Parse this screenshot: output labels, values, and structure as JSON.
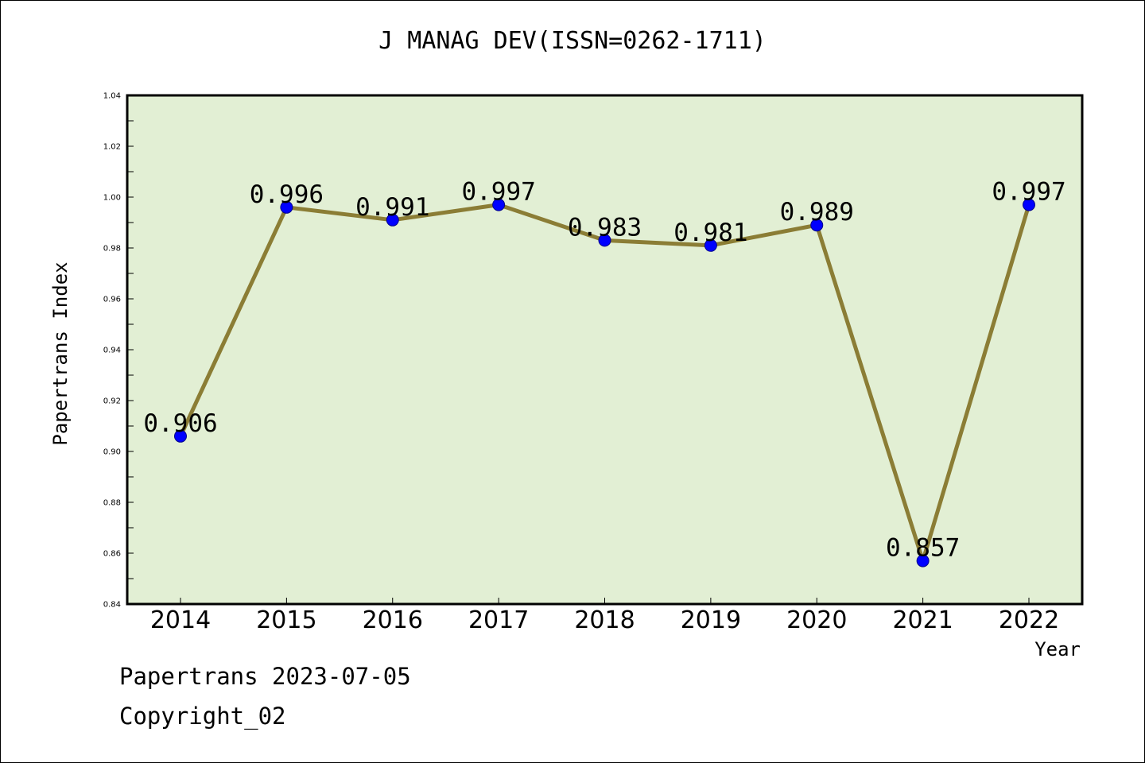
{
  "title": "J MANAG DEV(ISSN=0262-1711)",
  "footer": {
    "line1": "Papertrans 2023-07-05",
    "line2": "Copyright_02"
  },
  "colors": {
    "plot_bg": "#e2efd4",
    "line": "#8b7d35",
    "marker": "#0000ff"
  },
  "chart_data": {
    "type": "line",
    "title": "J MANAG DEV(ISSN=0262-1711)",
    "xlabel": "Year",
    "ylabel": "Papertrans Index",
    "categories": [
      "2014",
      "2015",
      "2016",
      "2017",
      "2018",
      "2019",
      "2020",
      "2021",
      "2022"
    ],
    "values": [
      0.906,
      0.996,
      0.991,
      0.997,
      0.983,
      0.981,
      0.989,
      0.857,
      0.997
    ],
    "data_labels": [
      "0.906",
      "0.996",
      "0.991",
      "0.997",
      "0.983",
      "0.981",
      "0.989",
      "0.857",
      "0.997"
    ],
    "ylim": [
      0.84,
      1.04
    ],
    "yticks": [
      "0.84",
      "0.86",
      "0.88",
      "0.90",
      "0.92",
      "0.94",
      "0.96",
      "0.98",
      "1.00",
      "1.02",
      "1.04"
    ],
    "grid": false,
    "legend": "none"
  }
}
